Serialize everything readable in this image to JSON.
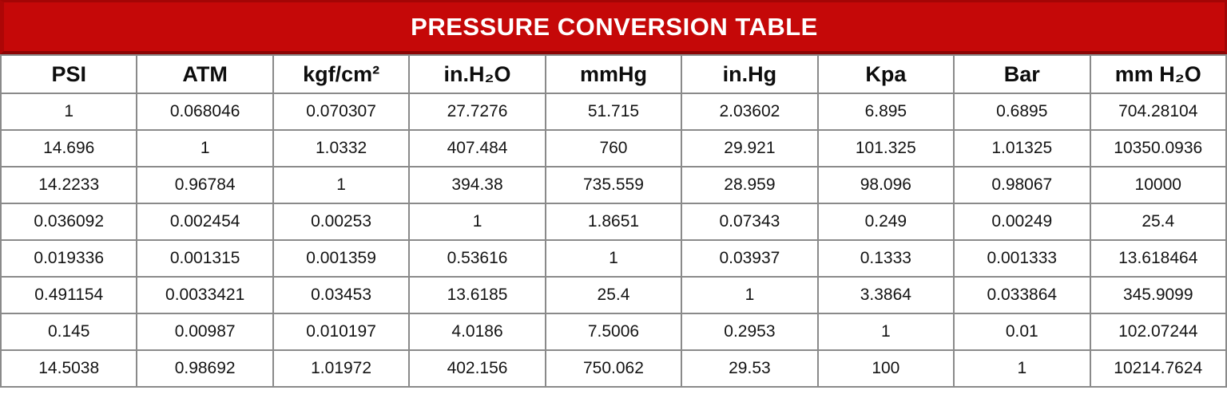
{
  "title": "PRESSURE CONVERSION TABLE",
  "colors": {
    "banner_red": "#c50808",
    "banner_border_dark_red": "#8c0404",
    "grid_gray": "#8a8a8a",
    "title_text": "#ffffff",
    "cell_text": "#141414"
  },
  "chart_data": {
    "type": "table",
    "title": "PRESSURE CONVERSION TABLE",
    "columns": [
      "PSI",
      "ATM",
      "kgf/cm²",
      "in.H₂O",
      "mmHg",
      "in.Hg",
      "Kpa",
      "Bar",
      "mm H₂O"
    ],
    "rows": [
      [
        "1",
        "0.068046",
        "0.070307",
        "27.7276",
        "51.715",
        "2.03602",
        "6.895",
        "0.6895",
        "704.28104"
      ],
      [
        "14.696",
        "1",
        "1.0332",
        "407.484",
        "760",
        "29.921",
        "101.325",
        "1.01325",
        "10350.0936"
      ],
      [
        "14.2233",
        "0.96784",
        "1",
        "394.38",
        "735.559",
        "28.959",
        "98.096",
        "0.98067",
        "10000"
      ],
      [
        "0.036092",
        "0.002454",
        "0.00253",
        "1",
        "1.8651",
        "0.07343",
        "0.249",
        "0.00249",
        "25.4"
      ],
      [
        "0.019336",
        "0.001315",
        "0.001359",
        "0.53616",
        "1",
        "0.03937",
        "0.1333",
        "0.001333",
        "13.618464"
      ],
      [
        "0.491154",
        "0.0033421",
        "0.03453",
        "13.6185",
        "25.4",
        "1",
        "3.3864",
        "0.033864",
        "345.9099"
      ],
      [
        "0.145",
        "0.00987",
        "0.010197",
        "4.0186",
        "7.5006",
        "0.2953",
        "1",
        "0.01",
        "102.07244"
      ],
      [
        "14.5038",
        "0.98692",
        "1.01972",
        "402.156",
        "750.062",
        "29.53",
        "100",
        "1",
        "10214.7624"
      ]
    ]
  }
}
